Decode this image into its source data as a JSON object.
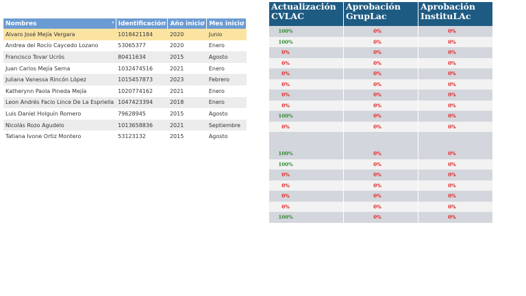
{
  "left_table": {
    "columns": [
      "Nombres",
      "Identificación",
      "Año inicio",
      "Mes inicio"
    ],
    "rows": [
      [
        "Alvaro José Mejía Vergara",
        "1018421184",
        "2020",
        "Junio"
      ],
      [
        "Andrea del Rocío Caycedo Lozano",
        "53065377",
        "2020",
        "Enero"
      ],
      [
        "Francisco Tovar Ucrós",
        "80411634",
        "2015",
        "Agosto"
      ],
      [
        "Juan Carlos Mejía Serna",
        "1032474516",
        "2021",
        "Enero"
      ],
      [
        "Juliana Vanessa Rincón López",
        "1015457873",
        "2023",
        "Febrero"
      ],
      [
        "Katherynn Paola Pineda Mejía",
        "1020774162",
        "2021",
        "Enero"
      ],
      [
        "Leon Andrés Facio Lince De La Espriella",
        "1047423394",
        "2018",
        "Enero"
      ],
      [
        "Luis Daniel Holguín Romero",
        "79628945",
        "2015",
        "Agosto"
      ],
      [
        "Nicolás Rozo Agudelo",
        "1013658836",
        "2021",
        "Septiembre"
      ],
      [
        "Tatiana Ivone Ortiz Montero",
        "53123132",
        "2015",
        "Agosto"
      ]
    ]
  },
  "right_table": {
    "columns": [
      "Actualización CVLAC",
      "Aprobación GrupLac",
      "Aprobación InstituLAc"
    ],
    "rows": [
      [
        "100%",
        "0%",
        "0%"
      ],
      [
        "100%",
        "0%",
        "0%"
      ],
      [
        "0%",
        "0%",
        "0%"
      ],
      [
        "0%",
        "0%",
        "0%"
      ],
      [
        "0%",
        "0%",
        "0%"
      ],
      [
        "0%",
        "0%",
        "0%"
      ],
      [
        "0%",
        "0%",
        "0%"
      ],
      [
        "0%",
        "0%",
        "0%"
      ],
      [
        "100%",
        "0%",
        "0%"
      ],
      [
        "0%",
        "0%",
        "0%"
      ],
      [
        null,
        null,
        null
      ],
      [
        "100%",
        "0%",
        "0%"
      ],
      [
        "100%",
        "0%",
        "0%"
      ],
      [
        "0%",
        "0%",
        "0%"
      ],
      [
        "0%",
        "0%",
        "0%"
      ],
      [
        "0%",
        "0%",
        "0%"
      ],
      [
        "0%",
        "0%",
        "0%"
      ],
      [
        "100%",
        "0%",
        "0%"
      ]
    ]
  }
}
